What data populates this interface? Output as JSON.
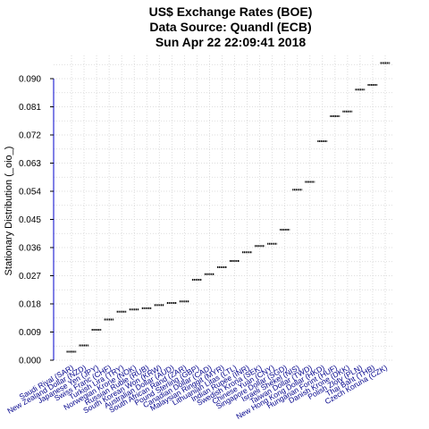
{
  "chart_data": {
    "type": "scatter",
    "title": [
      "US$ Exchange Rates (BOE)",
      "Data Source: Quandl (ECB)",
      "Sun Apr 22 22:09:41 2018"
    ],
    "xlabel": "",
    "ylabel": "Stationary Distribution (_oio_)",
    "ylim": [
      0,
      0.095
    ],
    "yticks": [
      0.0,
      0.009,
      0.018,
      0.027,
      0.036,
      0.045,
      0.054,
      0.063,
      0.072,
      0.081,
      0.09
    ],
    "ytick_labels": [
      "0.000",
      "0.009",
      "0.018",
      "0.027",
      "0.036",
      "0.045",
      "0.054",
      "0.063",
      "0.072",
      "0.081",
      "0.090"
    ],
    "grid": true,
    "categories": [
      "Saudi Riyal (SAR)",
      "New Zealand Dollar (NZD)",
      "Japanese Yen (JPY)",
      "Swiss Franc (CHF)",
      "Turkish Lira (TRY)",
      "Norwegian Krone (NOK)",
      "Russian Ruble (RUB)",
      "South Korean Won (KRW)",
      "Australian Dollar (AUD)",
      "South African Rand (ZAR)",
      "Pound Sterling (GBP)",
      "Canadian Dollar (CAD)",
      "Malaysian Ringgit (MYR)",
      "Lithuanian Litas (LTL)",
      "Indian Rupee (INR)",
      "Swedish Krona (SEK)",
      "Chinese Yuan (CNY)",
      "Singapore Dollar (SGD)",
      "Israeli Shekel (NIS)",
      "Taiwan Dollar (TWD)",
      "New Hong Kong Dollar (HKD)",
      "Hungarian Forint (HUF)",
      "Danish Krone (DKK)",
      "Polish Zloty (PLN)",
      "Thai Baht (THB)",
      "Czech Koruna (CZK)"
    ],
    "values": [
      0.0027,
      0.0047,
      0.0097,
      0.013,
      0.0155,
      0.0162,
      0.0166,
      0.0176,
      0.0183,
      0.0188,
      0.0257,
      0.0275,
      0.0297,
      0.0317,
      0.0345,
      0.0365,
      0.0372,
      0.0417,
      0.0545,
      0.057,
      0.07,
      0.078,
      0.0795,
      0.0865,
      0.088,
      0.095
    ],
    "colors": {
      "bars": "#000000",
      "tick_labels": "#00008b",
      "axis": "#0000cd",
      "grid": "#d3d3d3"
    }
  }
}
